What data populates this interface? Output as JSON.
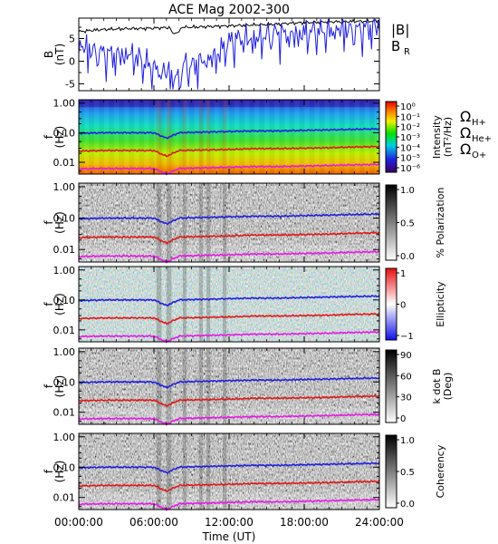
{
  "chart_data": {
    "title": "ACE Mag 2002-300",
    "type": "line",
    "x_axis": {
      "label": "Time (UT)",
      "range_hours": [
        0,
        24
      ],
      "tick_labels": [
        "00:00:00",
        "06:00:00",
        "12:00:00",
        "18:00:00",
        "24:00:00"
      ]
    },
    "panels": [
      {
        "name": "B",
        "type": "line",
        "ylabel_lines": [
          "B",
          "(nT)"
        ],
        "ylim": [
          -6.5,
          9.5
        ],
        "y_ticks": [
          "5",
          "0",
          "-5"
        ],
        "y_tick_values": [
          5,
          0,
          -5
        ],
        "legend": [
          {
            "label": "|B|",
            "color": "#000000"
          },
          {
            "label": "B",
            "sub": "R",
            "color": "#1f1fe0"
          }
        ],
        "series": [
          {
            "name": "|B|",
            "color": "#000000",
            "x": [
              0,
              1,
              2,
              3,
              4,
              5,
              6,
              7,
              8,
              9,
              10,
              11,
              12,
              13,
              14,
              15,
              16,
              17,
              18,
              19,
              20,
              21,
              22,
              23,
              24
            ],
            "y": [
              6.5,
              6.8,
              7.0,
              7.1,
              7.2,
              7.2,
              7.3,
              7.4,
              7.5,
              7.5,
              7.6,
              7.7,
              7.8,
              7.9,
              8.0,
              8.1,
              8.2,
              8.4,
              8.5,
              8.6,
              8.7,
              8.7,
              8.8,
              8.8,
              8.9
            ]
          },
          {
            "name": "B_R",
            "color": "#1f1fe0",
            "x": [
              0,
              1,
              2,
              3,
              4,
              5,
              6,
              7,
              8,
              9,
              10,
              11,
              12,
              13,
              14,
              15,
              16,
              17,
              18,
              19,
              20,
              21,
              22,
              23,
              24
            ],
            "y": [
              4.0,
              2.5,
              2.0,
              1.5,
              2.0,
              0.5,
              -1.5,
              -2.0,
              0.0,
              -1.0,
              0.5,
              1.5,
              4.5,
              5.5,
              5.0,
              6.0,
              6.5,
              6.0,
              6.5,
              7.0,
              7.0,
              7.5,
              7.0,
              7.5,
              8.0
            ]
          }
        ]
      },
      {
        "name": "Intensity",
        "type": "heatmap",
        "ylabel_lines": [
          "f",
          "(Hz)"
        ],
        "colorbar": {
          "label_lines": [
            "Intensity",
            "(nT²/Hz)"
          ],
          "ticks": [
            "10⁰",
            "10⁻¹",
            "10⁻²",
            "10⁻³",
            "10⁻⁴",
            "10⁻⁵",
            "10⁻⁶"
          ],
          "scale": "rainbow"
        }
      },
      {
        "name": "Polarization",
        "type": "heatmap",
        "ylabel_lines": [
          "f",
          "(Hz)"
        ],
        "colorbar": {
          "label_lines": [
            "% Polarization"
          ],
          "ticks": [
            "1.0",
            "0.5",
            "0.0"
          ],
          "scale": "gray"
        }
      },
      {
        "name": "Ellipticity",
        "type": "heatmap",
        "ylabel_lines": [
          "f",
          "(Hz)"
        ],
        "colorbar": {
          "label_lines": [
            "Ellipticity"
          ],
          "ticks": [
            "1",
            "0",
            "−1"
          ],
          "scale": "bwr"
        }
      },
      {
        "name": "k dot B",
        "type": "heatmap",
        "ylabel_lines": [
          "f",
          "(Hz)"
        ],
        "colorbar": {
          "label_lines": [
            "k dot B",
            "(Deg)"
          ],
          "ticks": [
            "90",
            "60",
            "30",
            "0"
          ],
          "scale": "gray"
        }
      },
      {
        "name": "Coherency",
        "type": "heatmap",
        "ylabel_lines": [
          "f",
          "(Hz)"
        ],
        "colorbar": {
          "label_lines": [
            "Coherency"
          ],
          "ticks": [
            "1.0",
            "0.5",
            "0.0"
          ],
          "scale": "gray"
        }
      }
    ],
    "freq_axis": {
      "scale": "log",
      "range_hz": [
        0.004,
        1.3
      ],
      "tick_labels": [
        "1.00",
        "0.10",
        "0.01"
      ],
      "tick_values": [
        1.0,
        0.1,
        0.01
      ]
    },
    "gyrofrequency_lines": [
      {
        "label": "Ω",
        "sub": "H+",
        "color": "#1f1fe0",
        "x": [
          0,
          2,
          4,
          6,
          7,
          8,
          10,
          12,
          14,
          16,
          18,
          20,
          22,
          24
        ],
        "y": [
          0.095,
          0.1,
          0.1,
          0.1,
          0.065,
          0.1,
          0.105,
          0.11,
          0.115,
          0.115,
          0.12,
          0.125,
          0.13,
          0.135
        ]
      },
      {
        "label": "Ω",
        "sub": "He+",
        "color": "#e01818",
        "x": [
          0,
          2,
          4,
          6,
          7,
          8,
          10,
          12,
          14,
          16,
          18,
          20,
          22,
          24
        ],
        "y": [
          0.024,
          0.025,
          0.025,
          0.025,
          0.016,
          0.025,
          0.026,
          0.027,
          0.029,
          0.029,
          0.03,
          0.031,
          0.033,
          0.034
        ]
      },
      {
        "label": "Ω",
        "sub": "O+",
        "color": "#e818e8",
        "x": [
          0,
          2,
          4,
          6,
          7,
          8,
          10,
          12,
          14,
          16,
          18,
          20,
          22,
          24
        ],
        "y": [
          0.006,
          0.0062,
          0.0062,
          0.0062,
          0.004,
          0.0062,
          0.0065,
          0.0068,
          0.0072,
          0.0072,
          0.0075,
          0.0078,
          0.0082,
          0.0085
        ]
      }
    ]
  }
}
